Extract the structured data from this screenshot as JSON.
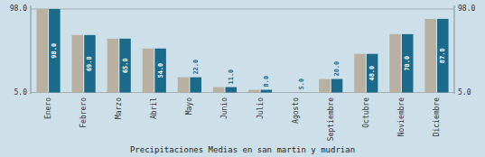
{
  "chart_data": {
    "type": "bar",
    "x_label": "Precipitaciones Medias en san martin y mudrian",
    "categories": [
      "Enero",
      "Febrero",
      "Marzo",
      "Abril",
      "Mayo",
      "Junio",
      "Julio",
      "Agosto",
      "Septiembre",
      "Octubre",
      "Noviembre",
      "Diciembre"
    ],
    "series": [
      {
        "color": "#b8b0a0",
        "values": [
          98.0,
          69.0,
          65.0,
          54.0,
          22.0,
          11.0,
          8.0,
          5.0,
          20.0,
          48.0,
          70.0,
          87.0
        ]
      },
      {
        "color": "#1b6a8a",
        "values": [
          98.0,
          69.0,
          65.0,
          54.0,
          22.0,
          11.0,
          8.0,
          5.0,
          20.0,
          48.0,
          70.0,
          87.0
        ],
        "value_labels": [
          "98.0",
          "69.0",
          "65.0",
          "54.0",
          "22.0",
          "11.0",
          "8.0",
          "5.0",
          "20.0",
          "48.0",
          "70.0",
          "87.0"
        ]
      }
    ],
    "ylim": [
      3.5,
      102.0
    ],
    "yticks": [
      {
        "value": 5.0,
        "label": "5.0"
      },
      {
        "value": 98.0,
        "label": "98.0"
      }
    ],
    "grid": true,
    "data_labels": true
  }
}
